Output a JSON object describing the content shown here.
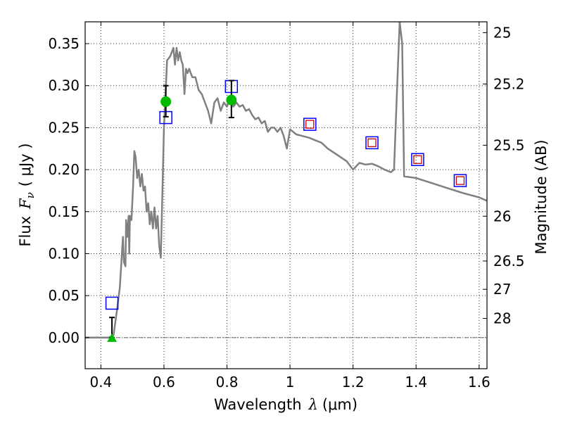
{
  "chart_data": {
    "type": "scatter",
    "xlabel_text": "Wavelength",
    "xlabel_symbol": "λ",
    "xlabel_unit": "(μm)",
    "ylabel_text": "Flux",
    "ylabel_symbol": "F",
    "ylabel_sub": "ν",
    "ylabel_unit": "( μJy )",
    "y2label": "Magnitude (AB)",
    "xlim": [
      0.35,
      1.625
    ],
    "ylim": [
      -0.037,
      0.376
    ],
    "grid": true,
    "x_ticks": [
      {
        "v": 0.4,
        "label": "0.4"
      },
      {
        "v": 0.6,
        "label": "0.6"
      },
      {
        "v": 0.8,
        "label": "0.8"
      },
      {
        "v": 1.0,
        "label": "1"
      },
      {
        "v": 1.2,
        "label": "1.2"
      },
      {
        "v": 1.4,
        "label": "1.4"
      },
      {
        "v": 1.6,
        "label": "1.6"
      }
    ],
    "y_ticks": [
      {
        "v": 0.0,
        "label": "0.00"
      },
      {
        "v": 0.05,
        "label": "0.05"
      },
      {
        "v": 0.1,
        "label": "0.10"
      },
      {
        "v": 0.15,
        "label": "0.15"
      },
      {
        "v": 0.2,
        "label": "0.20"
      },
      {
        "v": 0.25,
        "label": "0.25"
      },
      {
        "v": 0.3,
        "label": "0.30"
      },
      {
        "v": 0.35,
        "label": "0.35"
      }
    ],
    "mag_ticks": [
      {
        "mag": 25,
        "label": "25"
      },
      {
        "mag": 25.2,
        "label": "25.2"
      },
      {
        "mag": 25.5,
        "label": "25.5"
      },
      {
        "mag": 26,
        "label": "26"
      },
      {
        "mag": 26.5,
        "label": "26.5"
      },
      {
        "mag": 27,
        "label": "27"
      },
      {
        "mag": 28,
        "label": "28"
      }
    ],
    "model_spectrum": [
      [
        0.35,
        0.0
      ],
      [
        0.425,
        0.0
      ],
      [
        0.44,
        0.003
      ],
      [
        0.45,
        0.03
      ],
      [
        0.46,
        0.06
      ],
      [
        0.465,
        0.09
      ],
      [
        0.47,
        0.12
      ],
      [
        0.473,
        0.09
      ],
      [
        0.478,
        0.085
      ],
      [
        0.48,
        0.14
      ],
      [
        0.484,
        0.12
      ],
      [
        0.488,
        0.145
      ],
      [
        0.49,
        0.1
      ],
      [
        0.492,
        0.145
      ],
      [
        0.497,
        0.14
      ],
      [
        0.502,
        0.18
      ],
      [
        0.506,
        0.222
      ],
      [
        0.51,
        0.215
      ],
      [
        0.515,
        0.19
      ],
      [
        0.52,
        0.2
      ],
      [
        0.525,
        0.18
      ],
      [
        0.53,
        0.195
      ],
      [
        0.535,
        0.175
      ],
      [
        0.54,
        0.18
      ],
      [
        0.545,
        0.15
      ],
      [
        0.55,
        0.16
      ],
      [
        0.555,
        0.135
      ],
      [
        0.56,
        0.15
      ],
      [
        0.565,
        0.13
      ],
      [
        0.57,
        0.155
      ],
      [
        0.575,
        0.13
      ],
      [
        0.58,
        0.145
      ],
      [
        0.585,
        0.11
      ],
      [
        0.59,
        0.095
      ],
      [
        0.6,
        0.25
      ],
      [
        0.61,
        0.33
      ],
      [
        0.62,
        0.335
      ],
      [
        0.63,
        0.345
      ],
      [
        0.635,
        0.325
      ],
      [
        0.64,
        0.345
      ],
      [
        0.645,
        0.33
      ],
      [
        0.65,
        0.34
      ],
      [
        0.655,
        0.33
      ],
      [
        0.66,
        0.325
      ],
      [
        0.665,
        0.29
      ],
      [
        0.67,
        0.32
      ],
      [
        0.675,
        0.315
      ],
      [
        0.68,
        0.32
      ],
      [
        0.685,
        0.315
      ],
      [
        0.69,
        0.31
      ],
      [
        0.7,
        0.31
      ],
      [
        0.71,
        0.295
      ],
      [
        0.72,
        0.29
      ],
      [
        0.73,
        0.28
      ],
      [
        0.74,
        0.27
      ],
      [
        0.75,
        0.255
      ],
      [
        0.76,
        0.28
      ],
      [
        0.77,
        0.285
      ],
      [
        0.78,
        0.27
      ],
      [
        0.79,
        0.28
      ],
      [
        0.8,
        0.275
      ],
      [
        0.81,
        0.285
      ],
      [
        0.82,
        0.275
      ],
      [
        0.83,
        0.28
      ],
      [
        0.84,
        0.275
      ],
      [
        0.85,
        0.277
      ],
      [
        0.86,
        0.27
      ],
      [
        0.87,
        0.272
      ],
      [
        0.88,
        0.265
      ],
      [
        0.89,
        0.26
      ],
      [
        0.9,
        0.262
      ],
      [
        0.91,
        0.255
      ],
      [
        0.92,
        0.258
      ],
      [
        0.93,
        0.245
      ],
      [
        0.94,
        0.25
      ],
      [
        0.95,
        0.25
      ],
      [
        0.96,
        0.245
      ],
      [
        0.97,
        0.25
      ],
      [
        0.98,
        0.24
      ],
      [
        0.99,
        0.225
      ],
      [
        1.0,
        0.248
      ],
      [
        1.02,
        0.242
      ],
      [
        1.04,
        0.24
      ],
      [
        1.06,
        0.238
      ],
      [
        1.08,
        0.235
      ],
      [
        1.1,
        0.232
      ],
      [
        1.12,
        0.225
      ],
      [
        1.14,
        0.22
      ],
      [
        1.16,
        0.215
      ],
      [
        1.18,
        0.21
      ],
      [
        1.2,
        0.2
      ],
      [
        1.22,
        0.208
      ],
      [
        1.24,
        0.206
      ],
      [
        1.26,
        0.207
      ],
      [
        1.28,
        0.204
      ],
      [
        1.3,
        0.2
      ],
      [
        1.32,
        0.197
      ],
      [
        1.33,
        0.2
      ],
      [
        1.34,
        0.3
      ],
      [
        1.348,
        0.376
      ],
      [
        1.356,
        0.35
      ],
      [
        1.362,
        0.192
      ],
      [
        1.4,
        0.19
      ],
      [
        1.45,
        0.184
      ],
      [
        1.5,
        0.178
      ],
      [
        1.55,
        0.172
      ],
      [
        1.6,
        0.167
      ],
      [
        1.625,
        0.163
      ]
    ],
    "model_bandpass": [
      {
        "x": 0.435,
        "y": 0.041
      },
      {
        "x": 0.606,
        "y": 0.262
      },
      {
        "x": 0.814,
        "y": 0.299
      },
      {
        "x": 1.063,
        "y": 0.254
      },
      {
        "x": 1.26,
        "y": 0.232
      },
      {
        "x": 1.405,
        "y": 0.212
      },
      {
        "x": 1.54,
        "y": 0.187
      }
    ],
    "observed": [
      {
        "x": 1.063,
        "y": 0.254
      },
      {
        "x": 1.26,
        "y": 0.232
      },
      {
        "x": 1.405,
        "y": 0.212
      },
      {
        "x": 1.54,
        "y": 0.187
      }
    ],
    "detections": [
      {
        "x": 0.606,
        "y": 0.281,
        "lo": 0.263,
        "hi": 0.3
      },
      {
        "x": 0.814,
        "y": 0.283,
        "lo": 0.262,
        "hi": 0.306
      }
    ],
    "upper_limits": [
      {
        "x": 0.435,
        "y": 0.0,
        "lo": 0.0,
        "hi": 0.024
      }
    ],
    "colors": {
      "model": "#808080",
      "model_bandpass": "#0000ff",
      "observed": "#cc0000",
      "detection": "#00bb00",
      "errorbar": "#000000",
      "zeroline": "#555555"
    }
  }
}
